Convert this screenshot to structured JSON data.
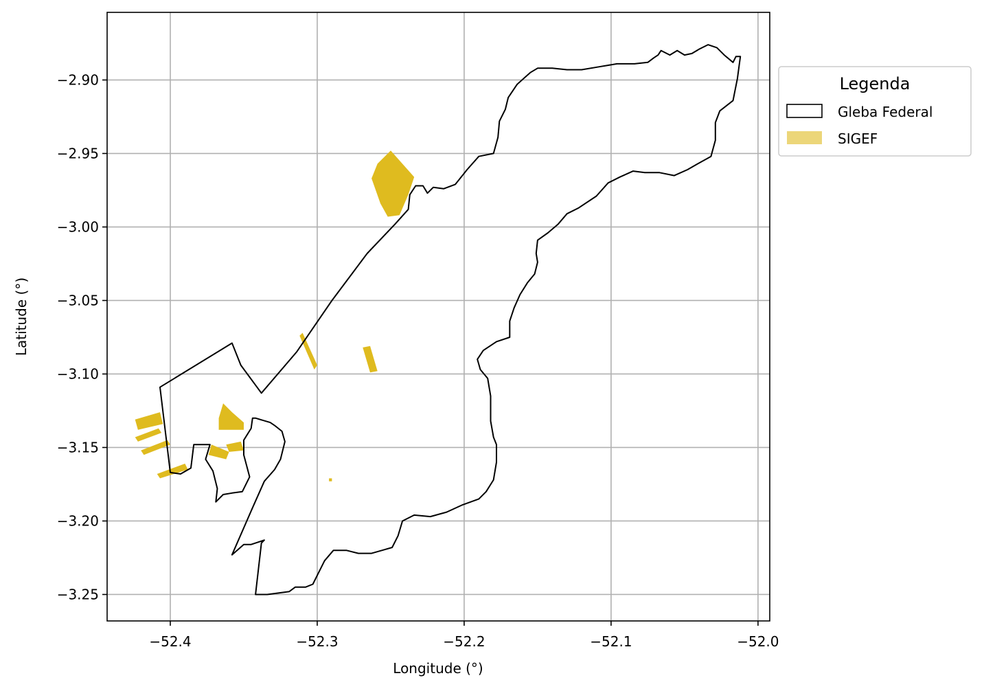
{
  "chart_data": {
    "type": "map",
    "xlabel": "Longitude (°)",
    "ylabel": "Latitude (°)",
    "xlim": [
      -52.443,
      -51.992
    ],
    "ylim": [
      -3.268,
      -2.854
    ],
    "grid": true,
    "x_ticks": [
      {
        "value": -52.4,
        "label": "−52.4"
      },
      {
        "value": -52.3,
        "label": "−52.3"
      },
      {
        "value": -52.2,
        "label": "−52.2"
      },
      {
        "value": -52.1,
        "label": "−52.1"
      },
      {
        "value": -52.0,
        "label": "−52.0"
      }
    ],
    "y_ticks": [
      {
        "value": -2.9,
        "label": "−2.90"
      },
      {
        "value": -2.95,
        "label": "−2.95"
      },
      {
        "value": -3.0,
        "label": "−3.00"
      },
      {
        "value": -3.05,
        "label": "−3.05"
      },
      {
        "value": -3.1,
        "label": "−3.10"
      },
      {
        "value": -3.15,
        "label": "−3.15"
      },
      {
        "value": -3.2,
        "label": "−3.20"
      },
      {
        "value": -3.25,
        "label": "−3.25"
      }
    ],
    "legend": {
      "title": "Legenda",
      "position": "outside-right-top",
      "items": [
        {
          "label": "Gleba Federal",
          "style": "outline",
          "color": "#000000"
        },
        {
          "label": "SIGEF",
          "style": "fill",
          "color": "#DFBB1F"
        }
      ]
    },
    "gleba_federal": {
      "name": "Gleba Federal",
      "stroke": "#000000",
      "coordinates": [
        [
          -52.407,
          -3.109
        ],
        [
          -52.358,
          -3.079
        ],
        [
          -52.352,
          -3.094
        ],
        [
          -52.338,
          -3.113
        ],
        [
          -52.314,
          -3.085
        ],
        [
          -52.29,
          -3.05
        ],
        [
          -52.266,
          -3.018
        ],
        [
          -52.247,
          -2.998
        ],
        [
          -52.238,
          -2.988
        ],
        [
          -52.237,
          -2.978
        ],
        [
          -52.233,
          -2.972
        ],
        [
          -52.228,
          -2.972
        ],
        [
          -52.225,
          -2.977
        ],
        [
          -52.221,
          -2.973
        ],
        [
          -52.214,
          -2.974
        ],
        [
          -52.206,
          -2.971
        ],
        [
          -52.198,
          -2.961
        ],
        [
          -52.19,
          -2.952
        ],
        [
          -52.18,
          -2.95
        ],
        [
          -52.177,
          -2.939
        ],
        [
          -52.176,
          -2.928
        ],
        [
          -52.172,
          -2.92
        ],
        [
          -52.17,
          -2.912
        ],
        [
          -52.164,
          -2.903
        ],
        [
          -52.155,
          -2.895
        ],
        [
          -52.15,
          -2.892
        ],
        [
          -52.14,
          -2.892
        ],
        [
          -52.13,
          -2.893
        ],
        [
          -52.12,
          -2.893
        ],
        [
          -52.108,
          -2.891
        ],
        [
          -52.096,
          -2.889
        ],
        [
          -52.084,
          -2.889
        ],
        [
          -52.075,
          -2.888
        ],
        [
          -52.071,
          -2.885
        ],
        [
          -52.068,
          -2.883
        ],
        [
          -52.066,
          -2.88
        ],
        [
          -52.06,
          -2.883
        ],
        [
          -52.055,
          -2.88
        ],
        [
          -52.05,
          -2.883
        ],
        [
          -52.045,
          -2.882
        ],
        [
          -52.04,
          -2.879
        ],
        [
          -52.034,
          -2.876
        ],
        [
          -52.028,
          -2.878
        ],
        [
          -52.023,
          -2.883
        ],
        [
          -52.017,
          -2.888
        ],
        [
          -52.015,
          -2.884
        ],
        [
          -52.012,
          -2.884
        ],
        [
          -52.014,
          -2.899
        ],
        [
          -52.017,
          -2.914
        ],
        [
          -52.026,
          -2.921
        ],
        [
          -52.029,
          -2.929
        ],
        [
          -52.029,
          -2.941
        ],
        [
          -52.032,
          -2.952
        ],
        [
          -52.041,
          -2.957
        ],
        [
          -52.048,
          -2.961
        ],
        [
          -52.057,
          -2.965
        ],
        [
          -52.067,
          -2.963
        ],
        [
          -52.077,
          -2.963
        ],
        [
          -52.085,
          -2.962
        ],
        [
          -52.094,
          -2.966
        ],
        [
          -52.102,
          -2.97
        ],
        [
          -52.11,
          -2.979
        ],
        [
          -52.122,
          -2.987
        ],
        [
          -52.13,
          -2.991
        ],
        [
          -52.136,
          -2.998
        ],
        [
          -52.143,
          -3.004
        ],
        [
          -52.15,
          -3.009
        ],
        [
          -52.151,
          -3.018
        ],
        [
          -52.15,
          -3.024
        ],
        [
          -52.152,
          -3.032
        ],
        [
          -52.157,
          -3.038
        ],
        [
          -52.162,
          -3.046
        ],
        [
          -52.166,
          -3.055
        ],
        [
          -52.169,
          -3.064
        ],
        [
          -52.169,
          -3.075
        ],
        [
          -52.178,
          -3.078
        ],
        [
          -52.187,
          -3.084
        ],
        [
          -52.191,
          -3.09
        ],
        [
          -52.189,
          -3.097
        ],
        [
          -52.184,
          -3.103
        ],
        [
          -52.182,
          -3.115
        ],
        [
          -52.182,
          -3.132
        ],
        [
          -52.18,
          -3.143
        ],
        [
          -52.178,
          -3.148
        ],
        [
          -52.178,
          -3.16
        ],
        [
          -52.18,
          -3.172
        ],
        [
          -52.185,
          -3.18
        ],
        [
          -52.19,
          -3.185
        ],
        [
          -52.201,
          -3.189
        ],
        [
          -52.212,
          -3.194
        ],
        [
          -52.223,
          -3.197
        ],
        [
          -52.234,
          -3.196
        ],
        [
          -52.242,
          -3.2
        ],
        [
          -52.245,
          -3.21
        ],
        [
          -52.249,
          -3.218
        ],
        [
          -52.256,
          -3.22
        ],
        [
          -52.263,
          -3.222
        ],
        [
          -52.272,
          -3.222
        ],
        [
          -52.28,
          -3.22
        ],
        [
          -52.289,
          -3.22
        ],
        [
          -52.295,
          -3.227
        ],
        [
          -52.3,
          -3.237
        ],
        [
          -52.303,
          -3.243
        ],
        [
          -52.308,
          -3.245
        ],
        [
          -52.315,
          -3.245
        ],
        [
          -52.319,
          -3.248
        ],
        [
          -52.326,
          -3.249
        ],
        [
          -52.334,
          -3.25
        ],
        [
          -52.342,
          -3.25
        ],
        [
          -52.338,
          -3.215
        ],
        [
          -52.336,
          -3.213
        ],
        [
          -52.345,
          -3.216
        ],
        [
          -52.35,
          -3.216
        ],
        [
          -52.358,
          -3.223
        ],
        [
          -52.344,
          -3.191
        ],
        [
          -52.336,
          -3.173
        ],
        [
          -52.329,
          -3.165
        ],
        [
          -52.325,
          -3.158
        ],
        [
          -52.322,
          -3.146
        ],
        [
          -52.324,
          -3.139
        ],
        [
          -52.329,
          -3.135
        ],
        [
          -52.332,
          -3.133
        ],
        [
          -52.342,
          -3.13
        ],
        [
          -52.344,
          -3.13
        ],
        [
          -52.345,
          -3.137
        ],
        [
          -52.35,
          -3.145
        ],
        [
          -52.35,
          -3.155
        ],
        [
          -52.346,
          -3.17
        ],
        [
          -52.351,
          -3.18
        ],
        [
          -52.358,
          -3.181
        ],
        [
          -52.364,
          -3.182
        ],
        [
          -52.369,
          -3.187
        ],
        [
          -52.368,
          -3.178
        ],
        [
          -52.371,
          -3.166
        ],
        [
          -52.376,
          -3.158
        ],
        [
          -52.373,
          -3.148
        ],
        [
          -52.384,
          -3.148
        ],
        [
          -52.386,
          -3.164
        ],
        [
          -52.393,
          -3.168
        ],
        [
          -52.4,
          -3.167
        ],
        [
          -52.407,
          -3.109
        ]
      ]
    },
    "sigef": {
      "name": "SIGEF",
      "fill": "#DFBB1F",
      "polygons": [
        [
          [
            -52.25,
            -2.948
          ],
          [
            -52.234,
            -2.966
          ],
          [
            -52.238,
            -2.978
          ],
          [
            -52.244,
            -2.992
          ],
          [
            -52.252,
            -2.993
          ],
          [
            -52.257,
            -2.984
          ],
          [
            -52.263,
            -2.967
          ],
          [
            -52.259,
            -2.957
          ]
        ],
        [
          [
            -52.312,
            -3.074
          ],
          [
            -52.31,
            -3.072
          ],
          [
            -52.3,
            -3.094
          ],
          [
            -52.302,
            -3.097
          ]
        ],
        [
          [
            -52.269,
            -3.082
          ],
          [
            -52.264,
            -3.081
          ],
          [
            -52.259,
            -3.098
          ],
          [
            -52.264,
            -3.099
          ]
        ],
        [
          [
            -52.424,
            -3.131
          ],
          [
            -52.407,
            -3.126
          ],
          [
            -52.405,
            -3.134
          ],
          [
            -52.422,
            -3.138
          ]
        ],
        [
          [
            -52.424,
            -3.143
          ],
          [
            -52.408,
            -3.137
          ],
          [
            -52.406,
            -3.14
          ],
          [
            -52.422,
            -3.146
          ]
        ],
        [
          [
            -52.42,
            -3.152
          ],
          [
            -52.402,
            -3.145
          ],
          [
            -52.4,
            -3.148
          ],
          [
            -52.418,
            -3.155
          ]
        ],
        [
          [
            -52.409,
            -3.168
          ],
          [
            -52.39,
            -3.161
          ],
          [
            -52.388,
            -3.165
          ],
          [
            -52.407,
            -3.171
          ]
        ],
        [
          [
            -52.364,
            -3.12
          ],
          [
            -52.358,
            -3.126
          ],
          [
            -52.35,
            -3.133
          ],
          [
            -52.35,
            -3.138
          ],
          [
            -52.367,
            -3.138
          ],
          [
            -52.367,
            -3.13
          ]
        ],
        [
          [
            -52.362,
            -3.148
          ],
          [
            -52.352,
            -3.146
          ],
          [
            -52.35,
            -3.152
          ],
          [
            -52.36,
            -3.153
          ]
        ],
        [
          [
            -52.372,
            -3.148
          ],
          [
            -52.36,
            -3.153
          ],
          [
            -52.362,
            -3.158
          ],
          [
            -52.374,
            -3.155
          ]
        ],
        [
          [
            -52.292,
            -3.171
          ],
          [
            -52.29,
            -3.171
          ],
          [
            -52.29,
            -3.173
          ],
          [
            -52.292,
            -3.173
          ]
        ]
      ]
    }
  }
}
